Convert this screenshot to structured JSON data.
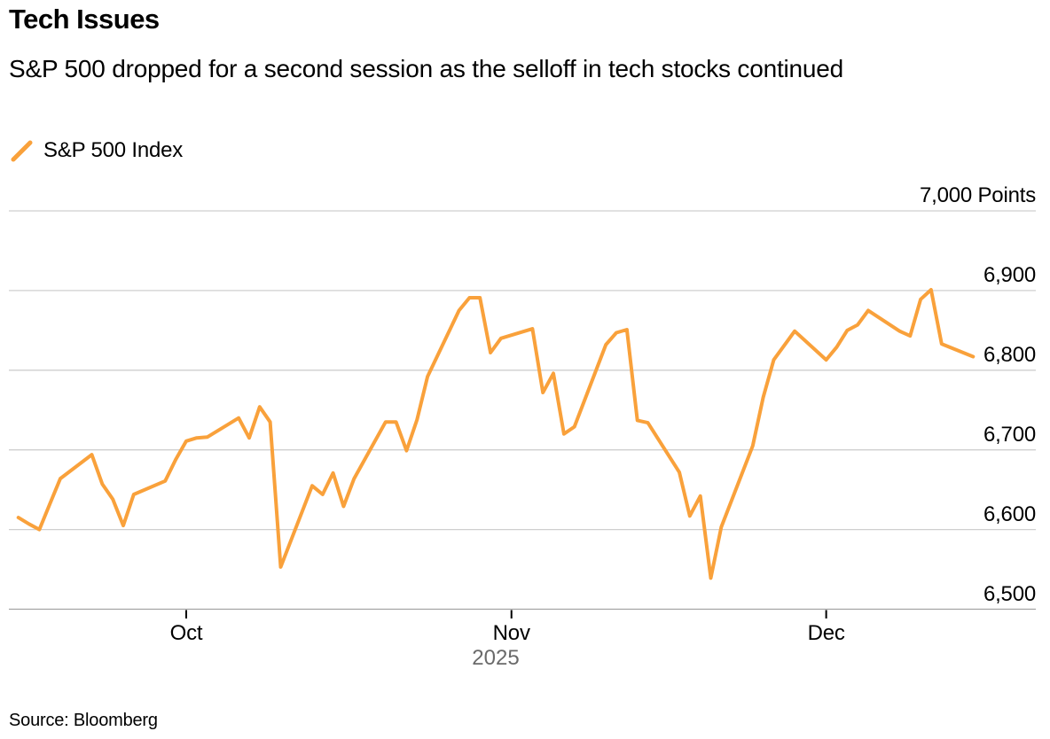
{
  "header": {
    "title": "Tech Issues",
    "subtitle": "S&P 500 dropped for a second session as the selloff in tech stocks continued"
  },
  "legend": {
    "series_label": "S&P 500 Index"
  },
  "source_note": "Source: Bloomberg",
  "colors": {
    "accent_orange": "#F9A13B",
    "gridline_gray": "#cfcfcf",
    "axis_gray": "#a3a3a3",
    "tick_black": "#000000",
    "year_gray": "#6a6a6a"
  },
  "chart_data": {
    "type": "line",
    "title": "Tech Issues",
    "unit": "Points",
    "legend_position": "top-left",
    "grid": "horizontal-only",
    "ylim": [
      6500,
      7000
    ],
    "x_range": [
      "2025-09-15",
      "2025-12-15"
    ],
    "x_ticks": [
      {
        "label": "Oct",
        "date": "2025-10-01"
      },
      {
        "label": "Nov",
        "date": "2025-11-01"
      },
      {
        "label": "Dec",
        "date": "2025-12-01"
      }
    ],
    "x_year_label": "2025",
    "y_ticks": [
      {
        "label": "7,000 Points",
        "value": 7000
      },
      {
        "label": "6,900",
        "value": 6900
      },
      {
        "label": "6,800",
        "value": 6800
      },
      {
        "label": "6,700",
        "value": 6700
      },
      {
        "label": "6,600",
        "value": 6600
      },
      {
        "label": "6,500",
        "value": 6500
      }
    ],
    "series": [
      {
        "name": "S&P 500 Index",
        "color": "#F9A13B",
        "dates": [
          "2025-09-15",
          "2025-09-16",
          "2025-09-17",
          "2025-09-18",
          "2025-09-19",
          "2025-09-22",
          "2025-09-23",
          "2025-09-24",
          "2025-09-25",
          "2025-09-26",
          "2025-09-29",
          "2025-09-30",
          "2025-10-01",
          "2025-10-02",
          "2025-10-03",
          "2025-10-06",
          "2025-10-07",
          "2025-10-08",
          "2025-10-09",
          "2025-10-10",
          "2025-10-13",
          "2025-10-14",
          "2025-10-15",
          "2025-10-16",
          "2025-10-17",
          "2025-10-20",
          "2025-10-21",
          "2025-10-22",
          "2025-10-23",
          "2025-10-24",
          "2025-10-27",
          "2025-10-28",
          "2025-10-29",
          "2025-10-30",
          "2025-10-31",
          "2025-11-03",
          "2025-11-04",
          "2025-11-05",
          "2025-11-06",
          "2025-11-07",
          "2025-11-10",
          "2025-11-11",
          "2025-11-12",
          "2025-11-13",
          "2025-11-14",
          "2025-11-17",
          "2025-11-18",
          "2025-11-19",
          "2025-11-20",
          "2025-11-21",
          "2025-11-24",
          "2025-11-25",
          "2025-11-26",
          "2025-11-28",
          "2025-12-01",
          "2025-12-02",
          "2025-12-03",
          "2025-12-04",
          "2025-12-05",
          "2025-12-08",
          "2025-12-09",
          "2025-12-10",
          "2025-12-11",
          "2025-12-12",
          "2025-12-15"
        ],
        "values": [
          6615,
          6607,
          6600,
          6632,
          6664,
          6694,
          6657,
          6638,
          6605,
          6644,
          6661,
          6688,
          6711,
          6715,
          6716,
          6740,
          6715,
          6754,
          6735,
          6553,
          6655,
          6644,
          6671,
          6629,
          6664,
          6735,
          6735,
          6699,
          6738,
          6792,
          6875,
          6891,
          6891,
          6822,
          6840,
          6852,
          6772,
          6796,
          6720,
          6729,
          6832,
          6847,
          6851,
          6737,
          6734,
          6672,
          6617,
          6642,
          6539,
          6603,
          6705,
          6766,
          6813,
          6849,
          6813,
          6829,
          6850,
          6857,
          6875,
          6849,
          6843,
          6889,
          6901,
          6833,
          6817
        ]
      }
    ]
  }
}
